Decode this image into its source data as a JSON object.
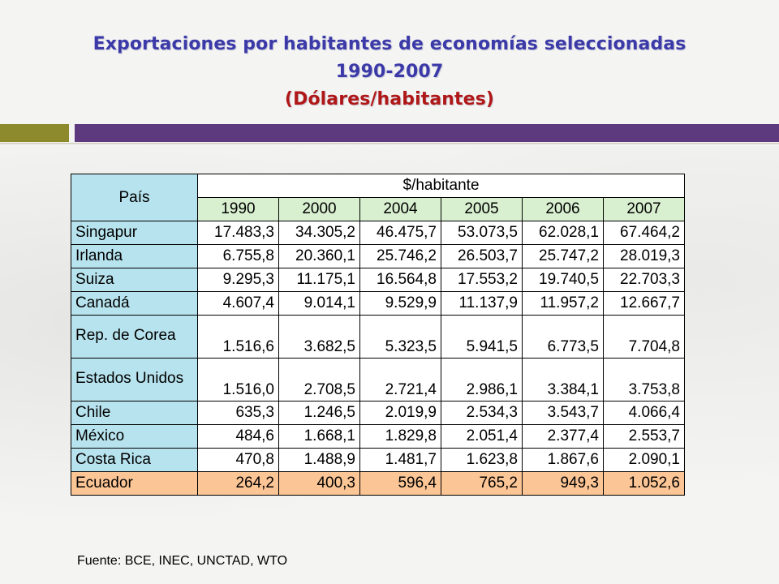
{
  "title": {
    "line1": "Exportaciones por habitantes de economías seleccionadas",
    "line2": "1990-2007",
    "line3": "(Dólares/habitantes)"
  },
  "table": {
    "country_header": "País",
    "group_header": "$/habitante",
    "years": [
      "1990",
      "2000",
      "2004",
      "2005",
      "2006",
      "2007"
    ],
    "rows": [
      {
        "country": "Singapur",
        "values": [
          "17.483,3",
          "34.305,2",
          "46.475,7",
          "53.073,5",
          "62.028,1",
          "67.464,2"
        ]
      },
      {
        "country": "Irlanda",
        "values": [
          "6.755,8",
          "20.360,1",
          "25.746,2",
          "26.503,7",
          "25.747,2",
          "28.019,3"
        ]
      },
      {
        "country": "Suiza",
        "values": [
          "9.295,3",
          "11.175,1",
          "16.564,8",
          "17.553,2",
          "19.740,5",
          "22.703,3"
        ]
      },
      {
        "country": "Canadá",
        "values": [
          "4.607,4",
          "9.014,1",
          "9.529,9",
          "11.137,9",
          "11.957,2",
          "12.667,7"
        ]
      },
      {
        "country": "Rep. de Corea",
        "values": [
          "1.516,6",
          "3.682,5",
          "5.323,5",
          "5.941,5",
          "6.773,5",
          "7.704,8"
        ]
      },
      {
        "country": "Estados Unidos",
        "values": [
          "1.516,0",
          "2.708,5",
          "2.721,4",
          "2.986,1",
          "3.384,1",
          "3.753,8"
        ]
      },
      {
        "country": "Chile",
        "values": [
          "635,3",
          "1.246,5",
          "2.019,9",
          "2.534,3",
          "3.543,7",
          "4.066,4"
        ]
      },
      {
        "country": "México",
        "values": [
          "484,6",
          "1.668,1",
          "1.829,8",
          "2.051,4",
          "2.377,4",
          "2.553,7"
        ]
      },
      {
        "country": "Costa Rica",
        "values": [
          "470,8",
          "1.488,9",
          "1.481,7",
          "1.623,8",
          "1.867,6",
          "2.090,1"
        ]
      },
      {
        "country": "Ecuador",
        "values": [
          "264,2",
          "400,3",
          "596,4",
          "765,2",
          "949,3",
          "1.052,6"
        ]
      }
    ]
  },
  "source": "Fuente: BCE, INEC, UNCTAD, WTO",
  "colors": {
    "title": "#3b3aa8",
    "title_unit": "#b01818",
    "country_cell": "#b7e3ee",
    "year_cell": "#d8f0d0",
    "highlight_row": "#fcc596",
    "bar_olive": "#8d8a2e",
    "bar_purple": "#5c3a7d"
  }
}
